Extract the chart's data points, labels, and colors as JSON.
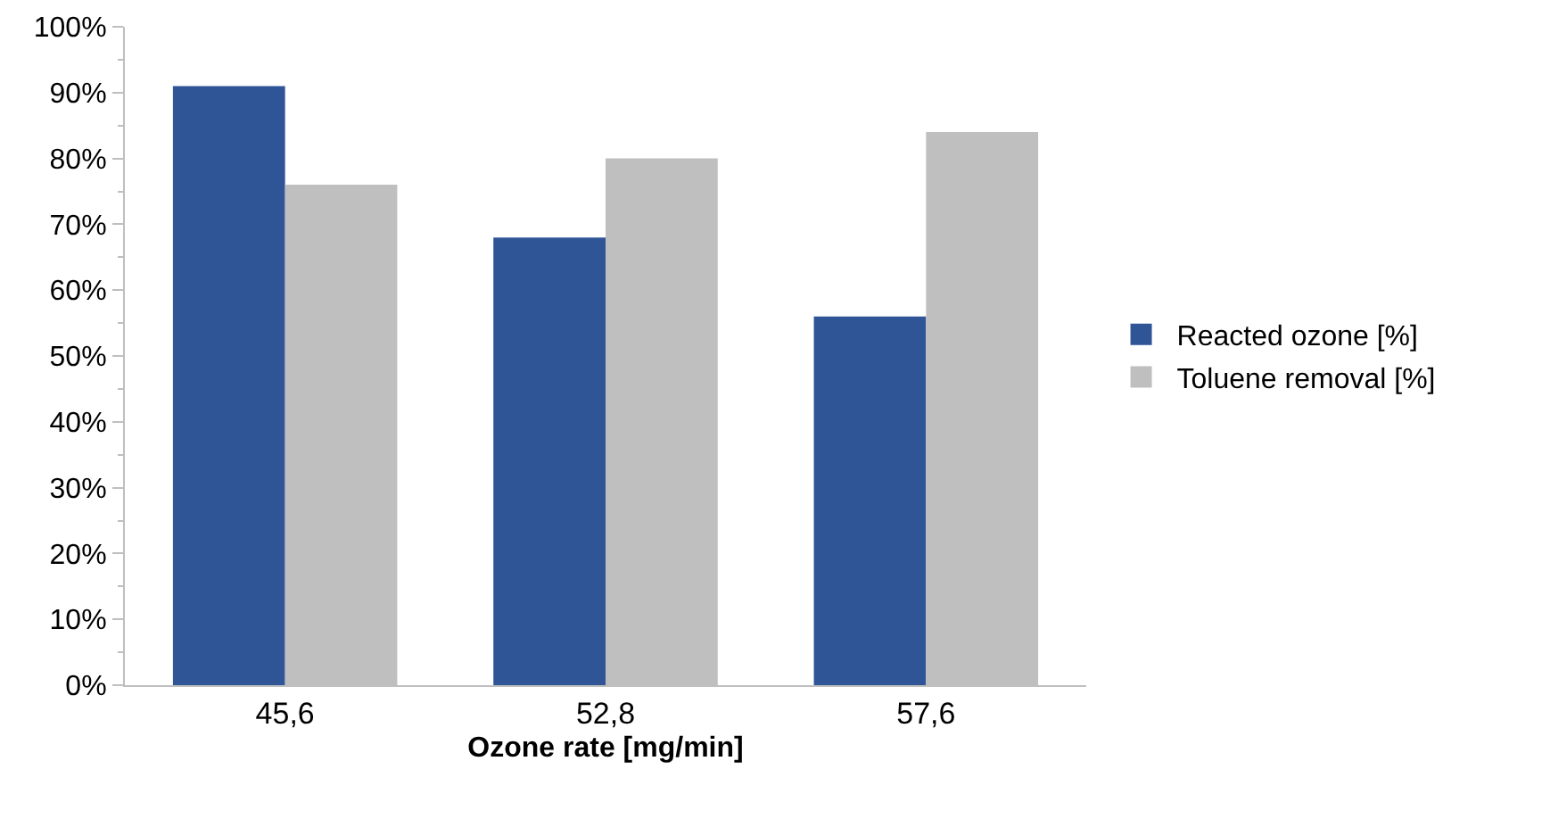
{
  "chart_data": {
    "type": "bar",
    "xlabel": "Ozone rate [mg/min]",
    "categories": [
      "45,6",
      "52,8",
      "57,6"
    ],
    "series": [
      {
        "name": "Reacted ozone [%]",
        "color": "#2f5597",
        "values": [
          91,
          68,
          56
        ]
      },
      {
        "name": "Toluene removal [%]",
        "color": "#bfbfbf",
        "values": [
          76,
          80,
          84
        ]
      }
    ],
    "ylim": [
      0,
      100
    ],
    "yticks": [
      {
        "value": 0,
        "label": "0%"
      },
      {
        "value": 10,
        "label": "10%"
      },
      {
        "value": 20,
        "label": "20%"
      },
      {
        "value": 30,
        "label": "30%"
      },
      {
        "value": 40,
        "label": "40%"
      },
      {
        "value": 50,
        "label": "50%"
      },
      {
        "value": 60,
        "label": "60%"
      },
      {
        "value": 70,
        "label": "70%"
      },
      {
        "value": 80,
        "label": "80%"
      },
      {
        "value": 90,
        "label": "90%"
      },
      {
        "value": 100,
        "label": "100%"
      }
    ],
    "grid": false,
    "legend": "right"
  }
}
